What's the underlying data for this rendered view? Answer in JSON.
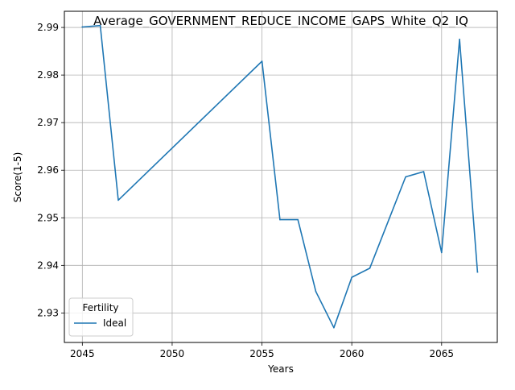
{
  "chart_data": {
    "type": "line",
    "title": "Average_GOVERNMENT_REDUCE_INCOME_GAPS_White_Q2_IQ",
    "xlabel": "Years",
    "ylabel": "Score(1-5)",
    "xlim": [
      2044.0,
      2068.1
    ],
    "ylim": [
      2.9238,
      2.9934
    ],
    "x_ticks": [
      2045,
      2050,
      2055,
      2060,
      2065
    ],
    "y_ticks": [
      2.93,
      2.94,
      2.95,
      2.96,
      2.97,
      2.98,
      2.99
    ],
    "x_tick_labels": [
      "2045",
      "2050",
      "2055",
      "2060",
      "2065"
    ],
    "y_tick_labels": [
      "2.93",
      "2.94",
      "2.95",
      "2.96",
      "2.97",
      "2.98",
      "2.99"
    ],
    "grid": true,
    "legend": {
      "title": "Fertility",
      "placement": "lower-left"
    },
    "series": [
      {
        "name": "Ideal",
        "color": "#1f77b4",
        "x": [
          2045,
          2046,
          2047,
          2055,
          2056,
          2057,
          2058,
          2059,
          2060,
          2061,
          2063,
          2064,
          2065,
          2066,
          2067
        ],
        "y": [
          2.9901,
          2.9904,
          2.9537,
          2.9829,
          2.9496,
          2.9496,
          2.9345,
          2.9269,
          2.9375,
          2.9394,
          2.9586,
          2.9597,
          2.9427,
          2.9875,
          2.9386
        ]
      }
    ]
  }
}
